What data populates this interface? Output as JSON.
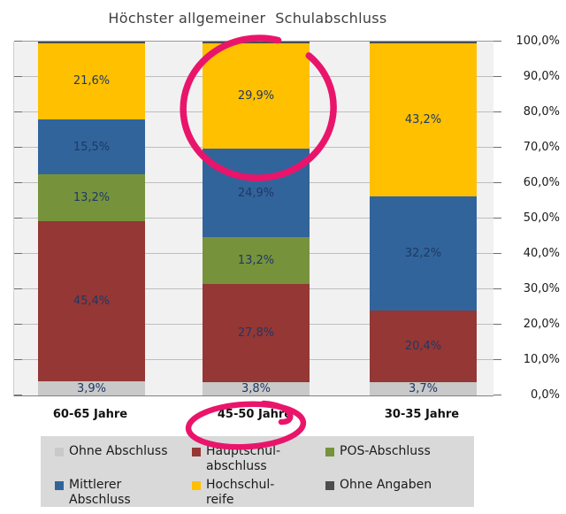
{
  "chart_data": {
    "type": "bar",
    "stacked": true,
    "title": "Höchster allgemeiner  Schulabschluss",
    "categories": [
      "60-65 Jahre",
      "45-50 Jahre",
      "30-35 Jahre"
    ],
    "series": [
      {
        "name": "Ohne Abschluss",
        "legend_label": "Ohne Abschluss",
        "color": "#C9C9C9",
        "values": [
          3.9,
          3.8,
          3.7
        ],
        "labels": [
          "3,9%",
          "3,8%",
          "3,7%"
        ]
      },
      {
        "name": "Hauptschulabschluss",
        "legend_label": "Hauptschul-\nabschluss",
        "color": "#953735",
        "values": [
          45.4,
          27.8,
          20.4
        ],
        "labels": [
          "45,4%",
          "27,8%",
          "20,4%"
        ]
      },
      {
        "name": "POS-Abschluss",
        "legend_label": "POS-Abschluss",
        "color": "#76933C",
        "values": [
          13.2,
          13.2,
          0
        ],
        "labels": [
          "13,2%",
          "13,2%",
          ""
        ]
      },
      {
        "name": "Mittlerer Abschluss",
        "legend_label": "Mittlerer\nAbschluss",
        "color": "#31649B",
        "values": [
          15.5,
          24.9,
          32.2
        ],
        "labels": [
          "15,5%",
          "24,9%",
          "32,2%"
        ]
      },
      {
        "name": "Hochschulreife",
        "legend_label": "Hochschul-\nreife",
        "color": "#FFC000",
        "values": [
          21.6,
          29.9,
          43.2
        ],
        "labels": [
          "21,6%",
          "29,9%",
          "43,2%"
        ]
      },
      {
        "name": "Ohne Angaben",
        "legend_label": "Ohne Angaben",
        "color": "#4D4D4D",
        "values": [
          0.4,
          0.4,
          0.5
        ],
        "labels": [
          "",
          "",
          ""
        ]
      }
    ],
    "ylim": [
      0,
      100
    ],
    "y_ticks": [
      "0,0%",
      "10,0%",
      "20,0%",
      "30,0%",
      "40,0%",
      "50,0%",
      "60,0%",
      "70,0%",
      "80,0%",
      "90,0%",
      "100,0%"
    ],
    "grid": true,
    "legend_position": "bottom",
    "segment_label_color": "#1F3864"
  },
  "annotations": {
    "pen_color": "#E9156B",
    "items": [
      {
        "type": "ellipse",
        "target": "Hochschulreife 29,9% segment of 45-50 Jahre bar"
      },
      {
        "type": "ellipse",
        "target": "45-50 Jahre category label"
      }
    ]
  }
}
